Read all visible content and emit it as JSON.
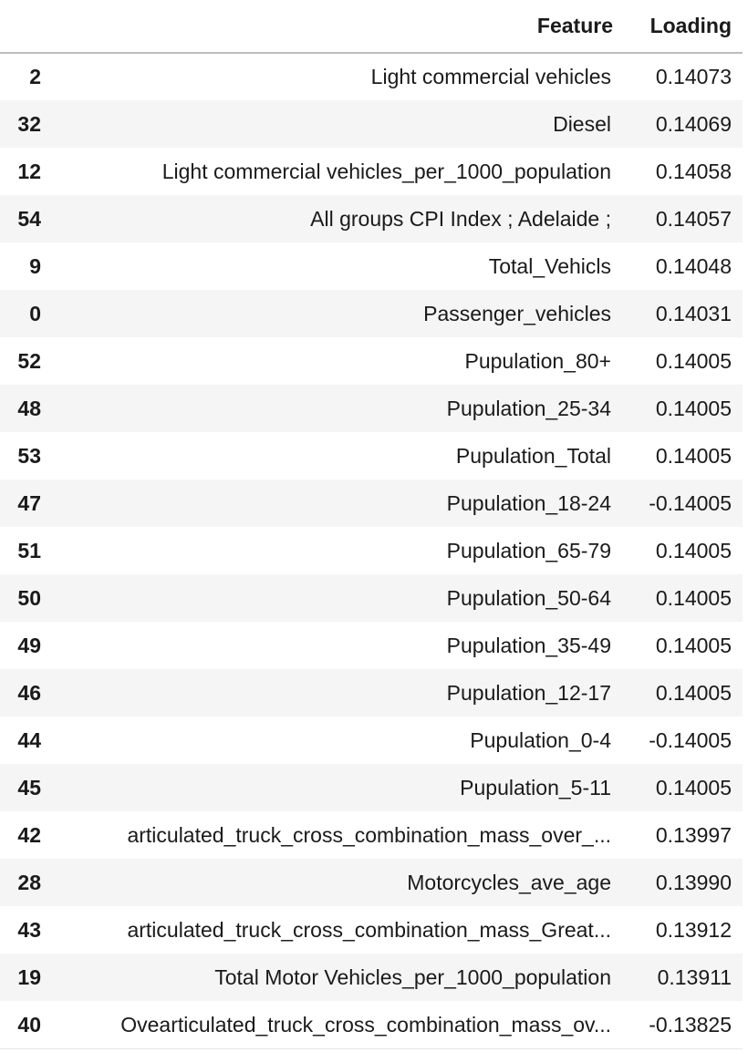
{
  "table": {
    "columns": [
      "",
      "Feature",
      "Loading"
    ],
    "rows": [
      {
        "index": "2",
        "feature": "Light commercial vehicles",
        "loading": "0.14073"
      },
      {
        "index": "32",
        "feature": "Diesel",
        "loading": "0.14069"
      },
      {
        "index": "12",
        "feature": "Light commercial vehicles_per_1000_population",
        "loading": "0.14058"
      },
      {
        "index": "54",
        "feature": "All groups CPI Index ; Adelaide ;",
        "loading": "0.14057"
      },
      {
        "index": "9",
        "feature": "Total_Vehicls",
        "loading": "0.14048"
      },
      {
        "index": "0",
        "feature": "Passenger_vehicles",
        "loading": "0.14031"
      },
      {
        "index": "52",
        "feature": "Pupulation_80+",
        "loading": "0.14005"
      },
      {
        "index": "48",
        "feature": "Pupulation_25-34",
        "loading": "0.14005"
      },
      {
        "index": "53",
        "feature": "Pupulation_Total",
        "loading": "0.14005"
      },
      {
        "index": "47",
        "feature": "Pupulation_18-24",
        "loading": "-0.14005"
      },
      {
        "index": "51",
        "feature": "Pupulation_65-79",
        "loading": "0.14005"
      },
      {
        "index": "50",
        "feature": "Pupulation_50-64",
        "loading": "0.14005"
      },
      {
        "index": "49",
        "feature": "Pupulation_35-49",
        "loading": "0.14005"
      },
      {
        "index": "46",
        "feature": "Pupulation_12-17",
        "loading": "0.14005"
      },
      {
        "index": "44",
        "feature": "Pupulation_0-4",
        "loading": "-0.14005"
      },
      {
        "index": "45",
        "feature": "Pupulation_5-11",
        "loading": "0.14005"
      },
      {
        "index": "42",
        "feature": "articulated_truck_cross_combination_mass_over_...",
        "loading": "0.13997"
      },
      {
        "index": "28",
        "feature": "Motorcycles_ave_age",
        "loading": "0.13990"
      },
      {
        "index": "43",
        "feature": "articulated_truck_cross_combination_mass_Great...",
        "loading": "0.13912"
      },
      {
        "index": "19",
        "feature": "Total Motor Vehicles_per_1000_population",
        "loading": "0.13911"
      },
      {
        "index": "40",
        "feature": "Ovearticulated_truck_cross_combination_mass_ov...",
        "loading": "-0.13825"
      }
    ]
  },
  "colors": {
    "stripe": "#f5f5f5",
    "header_rule": "#bdbdbd",
    "text": "#1a1a1a"
  }
}
